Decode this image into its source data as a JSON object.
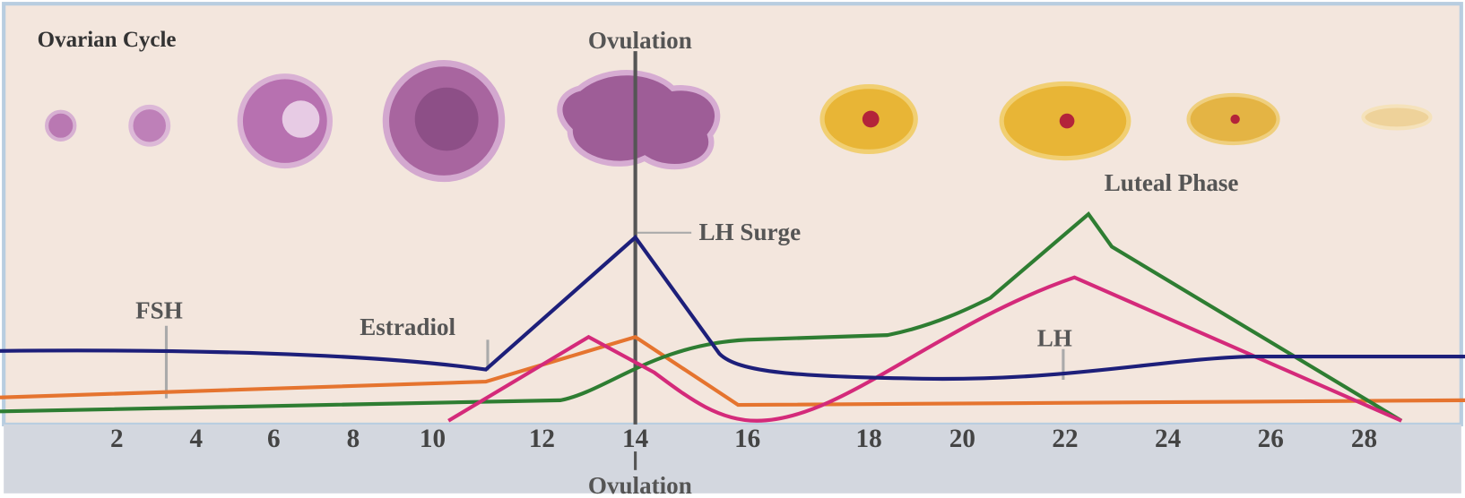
{
  "title": "Ovarian Cycle",
  "labels": {
    "ovulation_top": "Ovulation",
    "lh_surge": "LH Surge",
    "luteal_phase": "Luteal Phase",
    "fsh": "FSH",
    "estradiol": "Estradiol",
    "lh": "LH",
    "ovulation_bottom": "Ovulation"
  },
  "days": [
    2,
    4,
    6,
    8,
    10,
    12,
    14,
    16,
    18,
    20,
    22,
    24,
    26,
    28
  ]
}
